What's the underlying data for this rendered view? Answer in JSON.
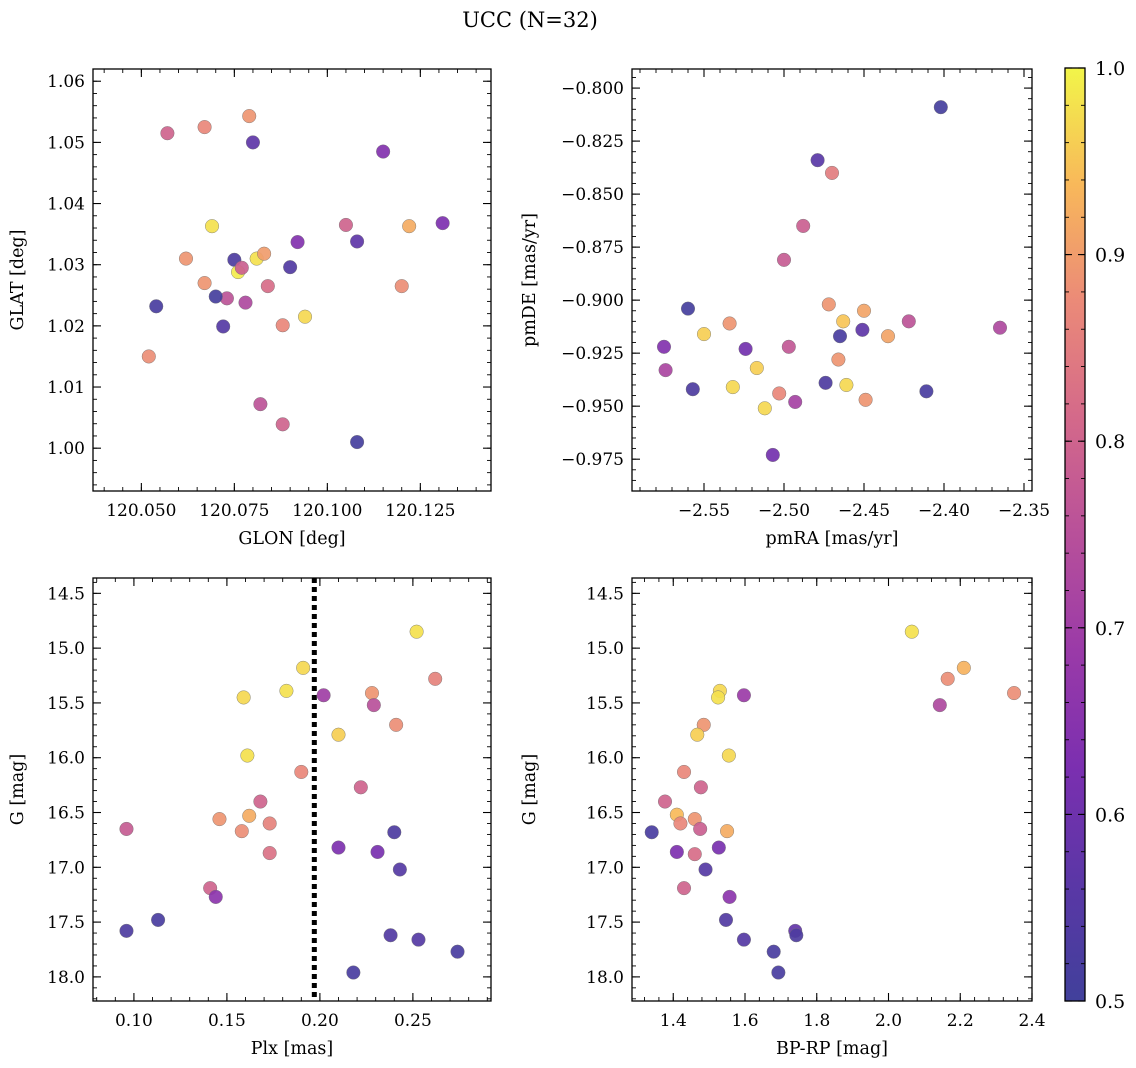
{
  "figure": {
    "title": "UCC (N=32)"
  },
  "colorbar": {
    "colormap": "plasma",
    "vmin": 0.5,
    "vmax": 1.0,
    "ticks": [
      0.5,
      0.6,
      0.7,
      0.8,
      0.9,
      1.0
    ],
    "tick_labels": [
      "0.5",
      "0.6",
      "0.7",
      "0.8",
      "0.9",
      "1.0"
    ]
  },
  "chart_data": [
    {
      "type": "scatter",
      "panel": "top-left",
      "xlabel": "GLON [deg]",
      "ylabel": "GLAT [deg]",
      "xlim": [
        120.037,
        120.144
      ],
      "ylim": [
        0.993,
        1.062
      ],
      "xticks": [
        120.05,
        120.075,
        120.1,
        120.125
      ],
      "xtick_labels": [
        "120.050",
        "120.075",
        "120.100",
        "120.125"
      ],
      "yticks": [
        1.0,
        1.01,
        1.02,
        1.03,
        1.04,
        1.05,
        1.06
      ],
      "ytick_labels": [
        "1.00",
        "1.01",
        "1.02",
        "1.03",
        "1.04",
        "1.05",
        "1.06"
      ],
      "x": [
        120.057,
        120.067,
        120.079,
        120.08,
        120.115,
        120.054,
        120.052,
        120.062,
        120.067,
        120.069,
        120.075,
        120.076,
        120.077,
        120.078,
        120.081,
        120.083,
        120.084,
        120.073,
        120.07,
        120.072,
        120.088,
        120.09,
        120.092,
        120.094,
        120.105,
        120.108,
        120.12,
        120.122,
        120.131,
        120.082,
        120.088,
        120.108
      ],
      "y": [
        1.0515,
        1.0525,
        1.0543,
        1.05,
        1.0485,
        1.0232,
        1.015,
        1.031,
        1.027,
        1.0363,
        1.0308,
        1.0288,
        1.0295,
        1.0238,
        1.031,
        1.0318,
        1.0265,
        1.0245,
        1.0248,
        1.0199,
        1.0201,
        1.0296,
        1.0337,
        1.0215,
        1.0365,
        1.0338,
        1.0265,
        1.0363,
        1.0368,
        1.0072,
        1.0039,
        1.001
      ],
      "c": [
        0.8,
        0.87,
        0.89,
        0.57,
        0.64,
        0.52,
        0.88,
        0.89,
        0.89,
        0.98,
        0.53,
        0.99,
        0.79,
        0.73,
        0.98,
        0.9,
        0.82,
        0.76,
        0.51,
        0.55,
        0.87,
        0.54,
        0.64,
        0.97,
        0.8,
        0.57,
        0.88,
        0.92,
        0.63,
        0.76,
        0.8,
        0.51
      ]
    },
    {
      "type": "scatter",
      "panel": "top-right",
      "xlabel": "pmRA [mas/yr]",
      "ylabel": "pmDE [mas/yr]",
      "xlim": [
        -2.595,
        -2.345
      ],
      "ylim": [
        -0.99,
        -0.791
      ],
      "xticks": [
        -2.55,
        -2.5,
        -2.45,
        -2.4,
        -2.35
      ],
      "xtick_labels": [
        "−2.55",
        "−2.50",
        "−2.45",
        "−2.40",
        "−2.35"
      ],
      "yticks": [
        -0.975,
        -0.95,
        -0.925,
        -0.9,
        -0.875,
        -0.85,
        -0.825,
        -0.8
      ],
      "ytick_labels": [
        "−0.975",
        "−0.950",
        "−0.925",
        "−0.900",
        "−0.875",
        "−0.850",
        "−0.825",
        "−0.800"
      ],
      "x": [
        -2.402,
        -2.479,
        -2.47,
        -2.488,
        -2.5,
        -2.56,
        -2.55,
        -2.534,
        -2.575,
        -2.574,
        -2.557,
        -2.532,
        -2.517,
        -2.524,
        -2.512,
        -2.503,
        -2.497,
        -2.507,
        -2.493,
        -2.472,
        -2.465,
        -2.463,
        -2.451,
        -2.45,
        -2.466,
        -2.461,
        -2.474,
        -2.449,
        -2.435,
        -2.422,
        -2.411,
        -2.365
      ],
      "y": [
        -0.809,
        -0.834,
        -0.84,
        -0.865,
        -0.881,
        -0.904,
        -0.916,
        -0.911,
        -0.922,
        -0.933,
        -0.942,
        -0.941,
        -0.932,
        -0.923,
        -0.951,
        -0.944,
        -0.922,
        -0.973,
        -0.948,
        -0.902,
        -0.917,
        -0.91,
        -0.914,
        -0.905,
        -0.928,
        -0.94,
        -0.939,
        -0.947,
        -0.917,
        -0.91,
        -0.943,
        -0.913
      ],
      "c": [
        0.51,
        0.56,
        0.85,
        0.79,
        0.78,
        0.51,
        0.96,
        0.89,
        0.64,
        0.72,
        0.53,
        0.97,
        0.96,
        0.61,
        0.97,
        0.87,
        0.77,
        0.61,
        0.71,
        0.89,
        0.52,
        0.95,
        0.57,
        0.91,
        0.89,
        0.97,
        0.53,
        0.89,
        0.91,
        0.76,
        0.52,
        0.73
      ]
    },
    {
      "type": "scatter",
      "panel": "bottom-left",
      "xlabel": "Plx [mas]",
      "ylabel": "G [mag]",
      "xlim": [
        0.078,
        0.292
      ],
      "ylim": [
        18.22,
        14.36
      ],
      "y_inverted": true,
      "vline": {
        "x": 0.197,
        "style": "dotted",
        "color": "#000000"
      },
      "xticks": [
        0.1,
        0.15,
        0.2,
        0.25
      ],
      "xtick_labels": [
        "0.10",
        "0.15",
        "0.20",
        "0.25"
      ],
      "yticks": [
        14.5,
        15.0,
        15.5,
        16.0,
        16.5,
        17.0,
        17.5,
        18.0
      ],
      "ytick_labels": [
        "14.5",
        "15.0",
        "15.5",
        "16.0",
        "16.5",
        "17.0",
        "17.5",
        "18.0"
      ],
      "x": [
        0.252,
        0.191,
        0.182,
        0.159,
        0.161,
        0.21,
        0.202,
        0.228,
        0.229,
        0.262,
        0.241,
        0.19,
        0.222,
        0.168,
        0.146,
        0.158,
        0.162,
        0.173,
        0.173,
        0.096,
        0.141,
        0.144,
        0.113,
        0.096,
        0.21,
        0.231,
        0.24,
        0.243,
        0.238,
        0.253,
        0.274,
        0.218
      ],
      "y": [
        14.85,
        15.18,
        15.39,
        15.45,
        15.98,
        15.79,
        15.43,
        15.41,
        15.52,
        15.28,
        15.7,
        16.13,
        16.27,
        16.4,
        16.56,
        16.67,
        16.53,
        16.6,
        16.87,
        16.65,
        17.19,
        17.27,
        17.48,
        17.58,
        16.82,
        16.86,
        16.68,
        17.02,
        17.62,
        17.66,
        17.77,
        17.96
      ],
      "c": [
        0.98,
        0.97,
        0.98,
        0.97,
        0.98,
        0.96,
        0.7,
        0.89,
        0.75,
        0.86,
        0.88,
        0.87,
        0.8,
        0.8,
        0.89,
        0.88,
        0.92,
        0.86,
        0.83,
        0.78,
        0.8,
        0.66,
        0.52,
        0.53,
        0.63,
        0.62,
        0.53,
        0.55,
        0.54,
        0.55,
        0.52,
        0.52
      ]
    },
    {
      "type": "scatter",
      "panel": "bottom-right",
      "xlabel": "BP-RP [mag]",
      "ylabel": "G [mag]",
      "xlim": [
        1.285,
        2.4
      ],
      "ylim": [
        18.22,
        14.36
      ],
      "y_inverted": true,
      "xticks": [
        1.4,
        1.6,
        1.8,
        2.0,
        2.2,
        2.4
      ],
      "xtick_labels": [
        "1.4",
        "1.6",
        "1.8",
        "2.0",
        "2.2",
        "2.4"
      ],
      "yticks": [
        14.5,
        15.0,
        15.5,
        16.0,
        16.5,
        17.0,
        17.5,
        18.0
      ],
      "ytick_labels": [
        "14.5",
        "15.0",
        "15.5",
        "16.0",
        "16.5",
        "17.0",
        "17.5",
        "18.0"
      ],
      "x": [
        2.065,
        2.21,
        2.165,
        2.35,
        2.143,
        1.53,
        1.525,
        1.597,
        1.485,
        1.467,
        1.555,
        1.43,
        1.477,
        1.377,
        1.41,
        1.42,
        1.46,
        1.55,
        1.475,
        1.46,
        1.34,
        1.41,
        1.527,
        1.49,
        1.43,
        1.557,
        1.547,
        1.597,
        1.74,
        1.743,
        1.68,
        1.693
      ],
      "y": [
        14.85,
        15.18,
        15.28,
        15.41,
        15.52,
        15.39,
        15.45,
        15.43,
        15.7,
        15.79,
        15.98,
        16.13,
        16.27,
        16.4,
        16.52,
        16.6,
        16.56,
        16.67,
        16.65,
        16.88,
        16.68,
        16.86,
        16.82,
        17.02,
        17.19,
        17.27,
        17.48,
        17.66,
        17.58,
        17.62,
        17.77,
        17.96
      ],
      "c": [
        0.98,
        0.93,
        0.88,
        0.88,
        0.73,
        0.97,
        0.98,
        0.69,
        0.89,
        0.96,
        0.97,
        0.87,
        0.8,
        0.8,
        0.94,
        0.87,
        0.89,
        0.92,
        0.79,
        0.82,
        0.52,
        0.63,
        0.62,
        0.55,
        0.8,
        0.66,
        0.54,
        0.55,
        0.58,
        0.53,
        0.52,
        0.52
      ]
    }
  ]
}
